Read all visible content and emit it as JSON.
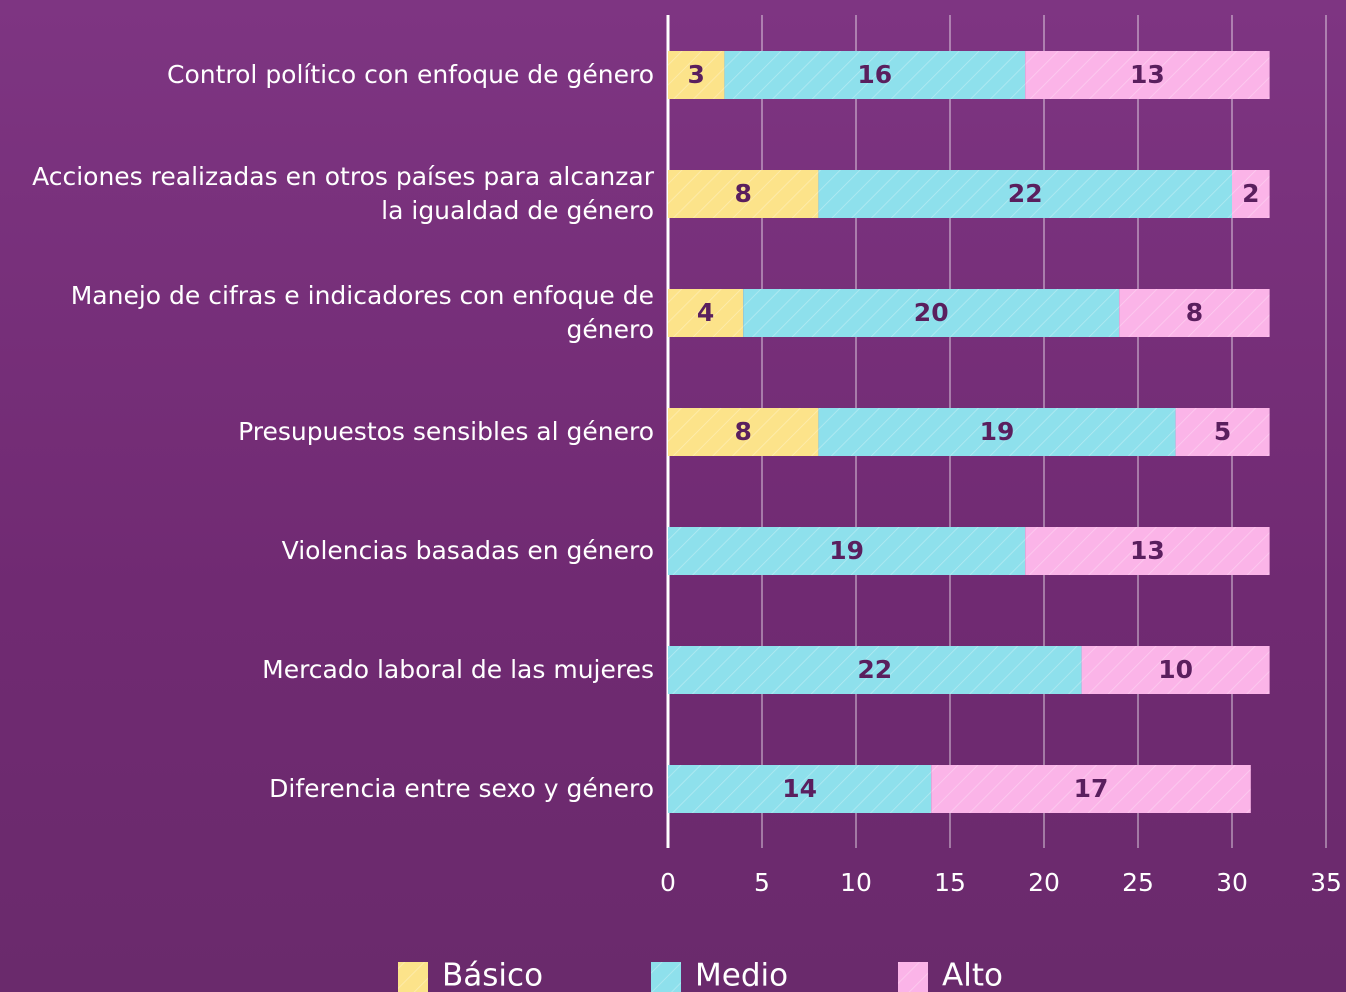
{
  "chart_data": {
    "type": "stacked_barh",
    "categories": [
      "Control político con enfoque de género",
      "Acciones realizadas en otros países para alcanzar la igualdad de género",
      "Manejo de cifras e indicadores con enfoque de género",
      "Presupuestos sensibles al género",
      "Violencias basadas en género",
      "Mercado laboral de las mujeres",
      "Diferencia entre sexo y género"
    ],
    "series": [
      {
        "name": "Básico",
        "color": "#fce38a",
        "values": [
          3,
          8,
          4,
          8,
          null,
          null,
          null
        ]
      },
      {
        "name": "Medio",
        "color": "#8ee0ec",
        "values": [
          16,
          22,
          20,
          19,
          19,
          22,
          14
        ]
      },
      {
        "name": "Alto",
        "color": "#fbb4e8",
        "values": [
          13,
          2,
          8,
          5,
          13,
          10,
          17
        ]
      }
    ],
    "xlim": [
      0,
      35
    ],
    "xticks": [
      0,
      5,
      10,
      15,
      20,
      25,
      30,
      35
    ],
    "grid": true,
    "legend": "bottom"
  }
}
